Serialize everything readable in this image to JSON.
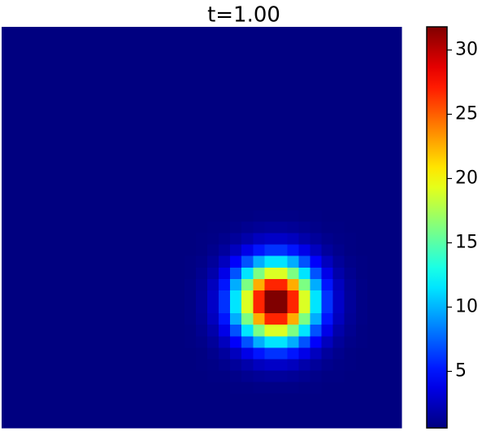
{
  "chart_data": {
    "type": "heatmap",
    "title": "t=1.00",
    "colormap": "jet",
    "clim": [
      0.6,
      31.8
    ],
    "colorbar_ticks": [
      5,
      10,
      15,
      20,
      25,
      30
    ],
    "z": [
      [
        0.6,
        0.6,
        0.6,
        0.6,
        0.6,
        0.6,
        0.6,
        0.6,
        0.6,
        0.6,
        0.6,
        0.6,
        0.6,
        0.6,
        0.6,
        0.6,
        0.6,
        0.6,
        0.6,
        0.6,
        0.6,
        0.6,
        0.6,
        0.6,
        0.6,
        0.6,
        0.6,
        0.6,
        0.6,
        0.6,
        0.6,
        0.6,
        0.6,
        0.6,
        0.6
      ],
      [
        0.6,
        0.6,
        0.6,
        0.6,
        0.6,
        0.6,
        0.6,
        0.6,
        0.6,
        0.6,
        0.6,
        0.6,
        0.6,
        0.6,
        0.6,
        0.6,
        0.6,
        0.6,
        0.6,
        0.6,
        0.6,
        0.6,
        0.6,
        0.6,
        0.6,
        0.6,
        0.6,
        0.6,
        0.6,
        0.6,
        0.6,
        0.6,
        0.6,
        0.6,
        0.6
      ],
      [
        0.6,
        0.6,
        0.6,
        0.6,
        0.6,
        0.6,
        0.6,
        0.6,
        0.6,
        0.6,
        0.6,
        0.6,
        0.6,
        0.6,
        0.6,
        0.6,
        0.6,
        0.6,
        0.6,
        0.6,
        0.6,
        0.6,
        0.6,
        0.6,
        0.6,
        0.6,
        0.6,
        0.6,
        0.6,
        0.6,
        0.6,
        0.6,
        0.6,
        0.6,
        0.6
      ],
      [
        0.6,
        0.6,
        0.6,
        0.6,
        0.6,
        0.6,
        0.6,
        0.6,
        0.6,
        0.6,
        0.6,
        0.6,
        0.6,
        0.6,
        0.6,
        0.6,
        0.6,
        0.6,
        0.6,
        0.6,
        0.6,
        0.6,
        0.6,
        0.6,
        0.6,
        0.6,
        0.6,
        0.6,
        0.6,
        0.6,
        0.6,
        0.6,
        0.6,
        0.6,
        0.6
      ],
      [
        0.6,
        0.6,
        0.6,
        0.6,
        0.6,
        0.6,
        0.6,
        0.6,
        0.6,
        0.6,
        0.6,
        0.6,
        0.6,
        0.6,
        0.6,
        0.6,
        0.6,
        0.6,
        0.6,
        0.6,
        0.6,
        0.6,
        0.6,
        0.6,
        0.6,
        0.6,
        0.6,
        0.6,
        0.6,
        0.6,
        0.6,
        0.6,
        0.6,
        0.6,
        0.6
      ],
      [
        0.6,
        0.6,
        0.6,
        0.6,
        0.6,
        0.6,
        0.6,
        0.6,
        0.6,
        0.6,
        0.6,
        0.6,
        0.6,
        0.6,
        0.6,
        0.6,
        0.6,
        0.6,
        0.6,
        0.6,
        0.6,
        0.6,
        0.6,
        0.6,
        0.6,
        0.6,
        0.6,
        0.6,
        0.6,
        0.6,
        0.6,
        0.6,
        0.6,
        0.6,
        0.6
      ],
      [
        0.6,
        0.6,
        0.6,
        0.6,
        0.6,
        0.6,
        0.6,
        0.6,
        0.6,
        0.6,
        0.6,
        0.6,
        0.6,
        0.6,
        0.6,
        0.6,
        0.6,
        0.6,
        0.6,
        0.6,
        0.6,
        0.6,
        0.6,
        0.6,
        0.6,
        0.6,
        0.6,
        0.6,
        0.6,
        0.6,
        0.6,
        0.6,
        0.6,
        0.6,
        0.6
      ],
      [
        0.6,
        0.6,
        0.6,
        0.6,
        0.6,
        0.6,
        0.6,
        0.6,
        0.6,
        0.6,
        0.6,
        0.6,
        0.6,
        0.6,
        0.6,
        0.6,
        0.6,
        0.6,
        0.6,
        0.6,
        0.6,
        0.6,
        0.6,
        0.6,
        0.6,
        0.6,
        0.6,
        0.6,
        0.6,
        0.6,
        0.6,
        0.6,
        0.6,
        0.6,
        0.6
      ],
      [
        0.6,
        0.6,
        0.6,
        0.6,
        0.6,
        0.6,
        0.6,
        0.6,
        0.6,
        0.6,
        0.6,
        0.6,
        0.6,
        0.6,
        0.6,
        0.6,
        0.6,
        0.6,
        0.6,
        0.6,
        0.6,
        0.6,
        0.6,
        0.6,
        0.6,
        0.6,
        0.6,
        0.6,
        0.6,
        0.6,
        0.6,
        0.6,
        0.6,
        0.6,
        0.6
      ],
      [
        0.6,
        0.6,
        0.6,
        0.6,
        0.6,
        0.6,
        0.6,
        0.6,
        0.6,
        0.6,
        0.6,
        0.6,
        0.6,
        0.6,
        0.6,
        0.6,
        0.6,
        0.6,
        0.6,
        0.6,
        0.6,
        0.6,
        0.6,
        0.6,
        0.6,
        0.6,
        0.6,
        0.6,
        0.6,
        0.6,
        0.6,
        0.6,
        0.6,
        0.6,
        0.6
      ],
      [
        0.6,
        0.6,
        0.6,
        0.6,
        0.6,
        0.6,
        0.6,
        0.6,
        0.6,
        0.6,
        0.6,
        0.6,
        0.6,
        0.6,
        0.6,
        0.6,
        0.6,
        0.6,
        0.6,
        0.6,
        0.6,
        0.6,
        0.6,
        0.6,
        0.6,
        0.6,
        0.6,
        0.6,
        0.6,
        0.6,
        0.6,
        0.6,
        0.6,
        0.6,
        0.6
      ],
      [
        0.6,
        0.6,
        0.6,
        0.6,
        0.6,
        0.6,
        0.6,
        0.6,
        0.6,
        0.6,
        0.6,
        0.6,
        0.6,
        0.6,
        0.6,
        0.6,
        0.6,
        0.6,
        0.6,
        0.6,
        0.6,
        0.6,
        0.6,
        0.6,
        0.6,
        0.6,
        0.6,
        0.6,
        0.6,
        0.6,
        0.6,
        0.6,
        0.6,
        0.6,
        0.6
      ],
      [
        0.6,
        0.6,
        0.6,
        0.6,
        0.6,
        0.6,
        0.6,
        0.6,
        0.6,
        0.6,
        0.6,
        0.6,
        0.6,
        0.6,
        0.6,
        0.6,
        0.6,
        0.6,
        0.6,
        0.6,
        0.6,
        0.6,
        0.6,
        0.6,
        0.6,
        0.6,
        0.6,
        0.6,
        0.6,
        0.6,
        0.6,
        0.6,
        0.6,
        0.6,
        0.6
      ],
      [
        0.6,
        0.6,
        0.6,
        0.6,
        0.6,
        0.6,
        0.6,
        0.6,
        0.6,
        0.6,
        0.6,
        0.6,
        0.6,
        0.6,
        0.6,
        0.6,
        0.6,
        0.6,
        0.6,
        0.6,
        0.6,
        0.6,
        0.6,
        0.6,
        0.6,
        0.6,
        0.6,
        0.6,
        0.6,
        0.6,
        0.6,
        0.6,
        0.6,
        0.6,
        0.6
      ],
      [
        0.6,
        0.6,
        0.6,
        0.6,
        0.6,
        0.6,
        0.6,
        0.6,
        0.6,
        0.6,
        0.6,
        0.6,
        0.6,
        0.6,
        0.6,
        0.6,
        0.6,
        0.6,
        0.6,
        0.6,
        0.6,
        0.6,
        0.6,
        0.6,
        0.6,
        0.6,
        0.6,
        0.6,
        0.6,
        0.6,
        0.6,
        0.6,
        0.6,
        0.6,
        0.6
      ],
      [
        0.6,
        0.6,
        0.6,
        0.6,
        0.6,
        0.6,
        0.6,
        0.6,
        0.6,
        0.6,
        0.6,
        0.6,
        0.6,
        0.6,
        0.6,
        0.6,
        0.6,
        0.6,
        0.6,
        0.6,
        0.6,
        0.6,
        0.6,
        0.6,
        0.6,
        0.6,
        0.6,
        0.6,
        0.6,
        0.6,
        0.6,
        0.6,
        0.6,
        0.6,
        0.6
      ],
      [
        0.6,
        0.6,
        0.6,
        0.6,
        0.6,
        0.6,
        0.6,
        0.6,
        0.6,
        0.6,
        0.6,
        0.6,
        0.6,
        0.6,
        0.6,
        0.6,
        0.6,
        0.6,
        0.6,
        0.6,
        0.7,
        0.7,
        0.8,
        0.8,
        0.8,
        0.8,
        0.7,
        0.7,
        0.6,
        0.6,
        0.6,
        0.6,
        0.6,
        0.6,
        0.6
      ],
      [
        0.6,
        0.6,
        0.6,
        0.6,
        0.6,
        0.6,
        0.6,
        0.6,
        0.6,
        0.6,
        0.6,
        0.6,
        0.6,
        0.6,
        0.6,
        0.6,
        0.6,
        0.6,
        0.7,
        0.7,
        0.9,
        1.1,
        1.3,
        1.4,
        1.4,
        1.3,
        1.1,
        0.9,
        0.7,
        0.7,
        0.6,
        0.6,
        0.6,
        0.6,
        0.6
      ],
      [
        0.6,
        0.6,
        0.6,
        0.6,
        0.6,
        0.6,
        0.6,
        0.6,
        0.6,
        0.6,
        0.6,
        0.6,
        0.6,
        0.6,
        0.6,
        0.6,
        0.6,
        0.7,
        0.8,
        1.0,
        1.4,
        1.9,
        2.5,
        2.8,
        2.8,
        2.5,
        1.9,
        1.4,
        1.0,
        0.8,
        0.7,
        0.6,
        0.6,
        0.6,
        0.6
      ],
      [
        0.6,
        0.6,
        0.6,
        0.6,
        0.6,
        0.6,
        0.6,
        0.6,
        0.6,
        0.6,
        0.6,
        0.6,
        0.6,
        0.6,
        0.6,
        0.6,
        0.6,
        0.7,
        1.0,
        1.5,
        2.5,
        3.8,
        5.1,
        6.0,
        6.0,
        5.1,
        3.8,
        2.5,
        1.5,
        1.0,
        0.7,
        0.6,
        0.6,
        0.6,
        0.6
      ],
      [
        0.6,
        0.6,
        0.6,
        0.6,
        0.6,
        0.6,
        0.6,
        0.6,
        0.6,
        0.6,
        0.6,
        0.6,
        0.6,
        0.6,
        0.6,
        0.6,
        0.7,
        0.9,
        1.4,
        2.5,
        4.4,
        7.0,
        9.8,
        11.5,
        11.5,
        9.8,
        7.0,
        4.4,
        2.5,
        1.4,
        0.9,
        0.7,
        0.6,
        0.6,
        0.6
      ],
      [
        0.6,
        0.6,
        0.6,
        0.6,
        0.6,
        0.6,
        0.6,
        0.6,
        0.6,
        0.6,
        0.6,
        0.6,
        0.6,
        0.6,
        0.6,
        0.6,
        0.7,
        1.1,
        1.9,
        3.8,
        7.0,
        11.5,
        16.1,
        19.0,
        19.0,
        16.1,
        11.5,
        7.0,
        3.8,
        1.9,
        1.1,
        0.7,
        0.6,
        0.6,
        0.6
      ],
      [
        0.6,
        0.6,
        0.6,
        0.6,
        0.6,
        0.6,
        0.6,
        0.6,
        0.6,
        0.6,
        0.6,
        0.6,
        0.6,
        0.6,
        0.6,
        0.6,
        0.8,
        1.3,
        2.5,
        5.1,
        9.8,
        16.1,
        22.6,
        26.8,
        26.8,
        22.6,
        16.1,
        9.8,
        5.1,
        2.5,
        1.3,
        0.8,
        0.6,
        0.6,
        0.6
      ],
      [
        0.6,
        0.6,
        0.6,
        0.6,
        0.6,
        0.6,
        0.6,
        0.6,
        0.6,
        0.6,
        0.6,
        0.6,
        0.6,
        0.6,
        0.6,
        0.6,
        0.8,
        1.4,
        2.8,
        6.0,
        11.5,
        19.0,
        26.8,
        31.8,
        31.8,
        26.8,
        19.0,
        11.5,
        6.0,
        2.8,
        1.4,
        0.8,
        0.6,
        0.6,
        0.6
      ],
      [
        0.6,
        0.6,
        0.6,
        0.6,
        0.6,
        0.6,
        0.6,
        0.6,
        0.6,
        0.6,
        0.6,
        0.6,
        0.6,
        0.6,
        0.6,
        0.6,
        0.8,
        1.4,
        2.8,
        6.0,
        11.5,
        19.0,
        26.8,
        31.8,
        31.8,
        26.8,
        19.0,
        11.5,
        6.0,
        2.8,
        1.4,
        0.8,
        0.6,
        0.6,
        0.6
      ],
      [
        0.6,
        0.6,
        0.6,
        0.6,
        0.6,
        0.6,
        0.6,
        0.6,
        0.6,
        0.6,
        0.6,
        0.6,
        0.6,
        0.6,
        0.6,
        0.6,
        0.8,
        1.3,
        2.5,
        5.1,
        9.8,
        16.1,
        22.6,
        26.8,
        26.8,
        22.6,
        16.1,
        9.8,
        5.1,
        2.5,
        1.3,
        0.8,
        0.6,
        0.6,
        0.6
      ],
      [
        0.6,
        0.6,
        0.6,
        0.6,
        0.6,
        0.6,
        0.6,
        0.6,
        0.6,
        0.6,
        0.6,
        0.6,
        0.6,
        0.6,
        0.6,
        0.6,
        0.7,
        1.1,
        1.9,
        3.8,
        7.0,
        11.5,
        16.1,
        19.0,
        19.0,
        16.1,
        11.5,
        7.0,
        3.8,
        1.9,
        1.1,
        0.7,
        0.6,
        0.6,
        0.6
      ],
      [
        0.6,
        0.6,
        0.6,
        0.6,
        0.6,
        0.6,
        0.6,
        0.6,
        0.6,
        0.6,
        0.6,
        0.6,
        0.6,
        0.6,
        0.6,
        0.6,
        0.7,
        0.9,
        1.4,
        2.5,
        4.4,
        7.0,
        9.8,
        11.5,
        11.5,
        9.8,
        7.0,
        4.4,
        2.5,
        1.4,
        0.9,
        0.7,
        0.6,
        0.6,
        0.6
      ],
      [
        0.6,
        0.6,
        0.6,
        0.6,
        0.6,
        0.6,
        0.6,
        0.6,
        0.6,
        0.6,
        0.6,
        0.6,
        0.6,
        0.6,
        0.6,
        0.6,
        0.6,
        0.7,
        1.0,
        1.5,
        2.5,
        3.8,
        5.1,
        6.0,
        6.0,
        5.1,
        3.8,
        2.5,
        1.5,
        1.0,
        0.7,
        0.6,
        0.6,
        0.6,
        0.6
      ],
      [
        0.6,
        0.6,
        0.6,
        0.6,
        0.6,
        0.6,
        0.6,
        0.6,
        0.6,
        0.6,
        0.6,
        0.6,
        0.6,
        0.6,
        0.6,
        0.6,
        0.6,
        0.7,
        0.8,
        1.0,
        1.4,
        1.9,
        2.5,
        2.8,
        2.8,
        2.5,
        1.9,
        1.4,
        1.0,
        0.8,
        0.7,
        0.6,
        0.6,
        0.6,
        0.6
      ],
      [
        0.6,
        0.6,
        0.6,
        0.6,
        0.6,
        0.6,
        0.6,
        0.6,
        0.6,
        0.6,
        0.6,
        0.6,
        0.6,
        0.6,
        0.6,
        0.6,
        0.6,
        0.6,
        0.7,
        0.7,
        0.9,
        1.1,
        1.3,
        1.4,
        1.4,
        1.3,
        1.1,
        0.9,
        0.7,
        0.7,
        0.6,
        0.6,
        0.6,
        0.6,
        0.6
      ],
      [
        0.6,
        0.6,
        0.6,
        0.6,
        0.6,
        0.6,
        0.6,
        0.6,
        0.6,
        0.6,
        0.6,
        0.6,
        0.6,
        0.6,
        0.6,
        0.6,
        0.6,
        0.6,
        0.6,
        0.6,
        0.7,
        0.7,
        0.8,
        0.8,
        0.8,
        0.8,
        0.7,
        0.7,
        0.6,
        0.6,
        0.6,
        0.6,
        0.6,
        0.6,
        0.6
      ],
      [
        0.6,
        0.6,
        0.6,
        0.6,
        0.6,
        0.6,
        0.6,
        0.6,
        0.6,
        0.6,
        0.6,
        0.6,
        0.6,
        0.6,
        0.6,
        0.6,
        0.6,
        0.6,
        0.6,
        0.6,
        0.6,
        0.6,
        0.6,
        0.6,
        0.6,
        0.6,
        0.6,
        0.6,
        0.6,
        0.6,
        0.6,
        0.6,
        0.6,
        0.6,
        0.6
      ],
      [
        0.6,
        0.6,
        0.6,
        0.6,
        0.6,
        0.6,
        0.6,
        0.6,
        0.6,
        0.6,
        0.6,
        0.6,
        0.6,
        0.6,
        0.6,
        0.6,
        0.6,
        0.6,
        0.6,
        0.6,
        0.6,
        0.6,
        0.6,
        0.6,
        0.6,
        0.6,
        0.6,
        0.6,
        0.6,
        0.6,
        0.6,
        0.6,
        0.6,
        0.6,
        0.6
      ],
      [
        0.6,
        0.6,
        0.6,
        0.6,
        0.6,
        0.6,
        0.6,
        0.6,
        0.6,
        0.6,
        0.6,
        0.6,
        0.6,
        0.6,
        0.6,
        0.6,
        0.6,
        0.6,
        0.6,
        0.6,
        0.6,
        0.6,
        0.6,
        0.6,
        0.6,
        0.6,
        0.6,
        0.6,
        0.6,
        0.6,
        0.6,
        0.6,
        0.6,
        0.6,
        0.6
      ]
    ]
  }
}
